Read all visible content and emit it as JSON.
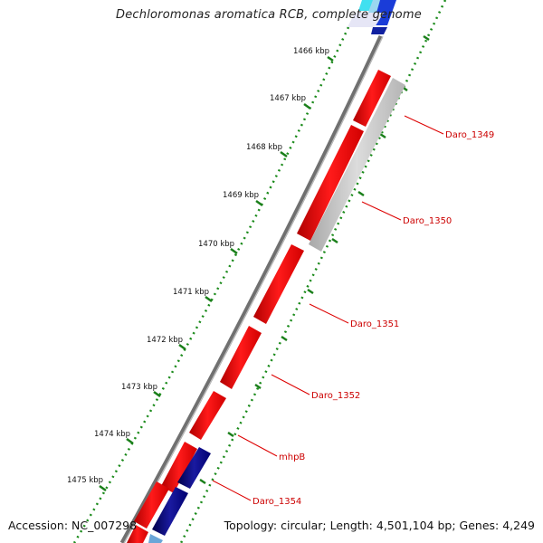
{
  "header": {
    "title": "Dechloromonas aromatica RCB, complete genome"
  },
  "footer": {
    "accession": "Accession: NC_007298",
    "summary": "Topology: circular; Length: 4,501,104 bp; Genes: 4,249"
  },
  "ruler": {
    "ticks": [
      "1466 kbp",
      "1467 kbp",
      "1468 kbp",
      "1469 kbp",
      "1470 kbp",
      "1471 kbp",
      "1472 kbp",
      "1473 kbp",
      "1474 kbp",
      "1475 kbp"
    ]
  },
  "genes": {
    "labels": [
      "Daro_1349",
      "Daro_1350",
      "Daro_1351",
      "Daro_1352",
      "mhpB",
      "Daro_1354"
    ]
  },
  "colors": {
    "forward_gene": "#ff0000",
    "reverse_gene_gray": "#c0c0c0",
    "reverse_gene_navy": "#000080",
    "backbone": "#777777",
    "tick": "#1a7f1a",
    "label": "#cc0000"
  }
}
